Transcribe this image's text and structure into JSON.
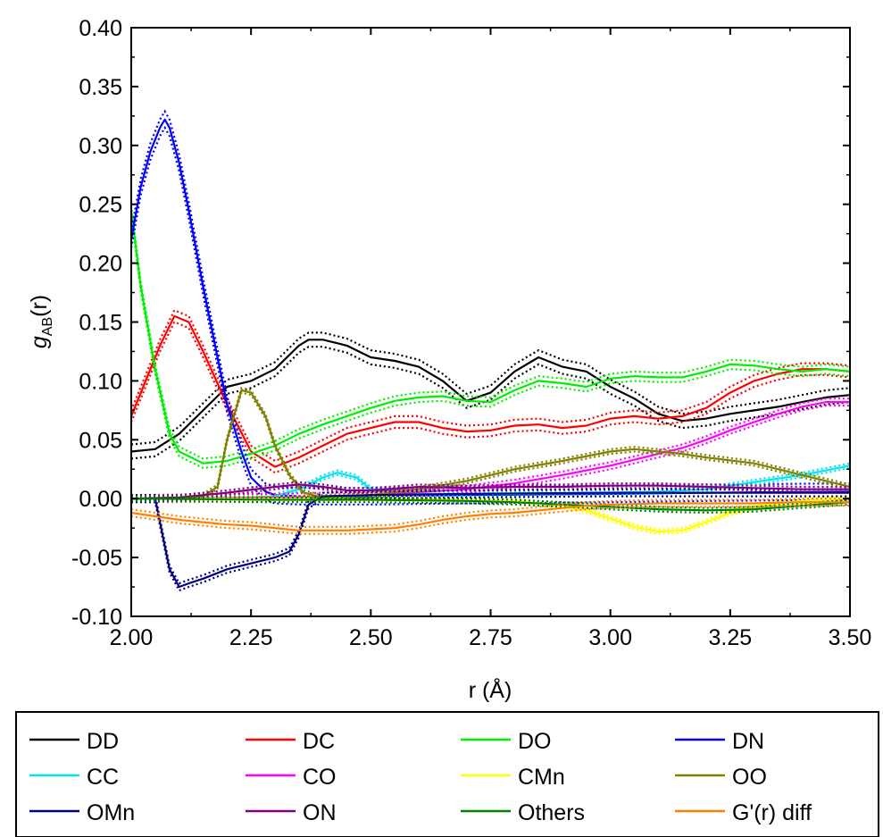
{
  "chart_data": {
    "type": "line",
    "xlabel": "r (Å)",
    "ylabel": {
      "main": "g",
      "sub": "AB",
      "suffix": "(r)"
    },
    "xlim": [
      2.0,
      3.5
    ],
    "ylim": [
      -0.1,
      0.4
    ],
    "xticks": [
      "2.00",
      "2.25",
      "2.50",
      "2.75",
      "3.00",
      "3.25",
      "3.50"
    ],
    "yticks": [
      "-0.10",
      "-0.05",
      "0.00",
      "0.05",
      "0.10",
      "0.15",
      "0.20",
      "0.25",
      "0.30",
      "0.35",
      "0.40"
    ],
    "grid": false,
    "legend_position": "bottom",
    "note": "Each solid curve is accompanied by dotted upper/lower curves",
    "series": [
      {
        "name": "DD",
        "color": "#000000",
        "band": 0.006,
        "x": [
          2.0,
          2.05,
          2.1,
          2.15,
          2.2,
          2.25,
          2.3,
          2.35,
          2.37,
          2.4,
          2.45,
          2.5,
          2.55,
          2.6,
          2.65,
          2.7,
          2.75,
          2.8,
          2.85,
          2.9,
          2.95,
          3.0,
          3.05,
          3.1,
          3.15,
          3.2,
          3.25,
          3.3,
          3.35,
          3.4,
          3.45,
          3.5
        ],
        "y": [
          0.04,
          0.042,
          0.055,
          0.075,
          0.095,
          0.1,
          0.11,
          0.13,
          0.135,
          0.135,
          0.13,
          0.12,
          0.117,
          0.112,
          0.1,
          0.083,
          0.09,
          0.108,
          0.12,
          0.112,
          0.108,
          0.095,
          0.085,
          0.072,
          0.066,
          0.068,
          0.072,
          0.075,
          0.078,
          0.082,
          0.086,
          0.088
        ]
      },
      {
        "name": "DC",
        "color": "#ff0000",
        "band": 0.005,
        "x": [
          2.0,
          2.03,
          2.06,
          2.09,
          2.12,
          2.15,
          2.2,
          2.25,
          2.3,
          2.35,
          2.4,
          2.45,
          2.5,
          2.55,
          2.6,
          2.65,
          2.7,
          2.75,
          2.8,
          2.85,
          2.9,
          2.95,
          3.0,
          3.05,
          3.1,
          3.15,
          3.2,
          3.25,
          3.3,
          3.35,
          3.4,
          3.45,
          3.5
        ],
        "y": [
          0.07,
          0.1,
          0.13,
          0.155,
          0.15,
          0.125,
          0.08,
          0.04,
          0.027,
          0.035,
          0.045,
          0.055,
          0.06,
          0.065,
          0.065,
          0.06,
          0.057,
          0.058,
          0.062,
          0.063,
          0.06,
          0.062,
          0.068,
          0.07,
          0.068,
          0.07,
          0.077,
          0.09,
          0.1,
          0.106,
          0.11,
          0.11,
          0.108
        ]
      },
      {
        "name": "DO",
        "color": "#00ee00",
        "band": 0.004,
        "x": [
          2.0,
          2.02,
          2.05,
          2.08,
          2.1,
          2.15,
          2.2,
          2.25,
          2.3,
          2.35,
          2.4,
          2.45,
          2.5,
          2.55,
          2.6,
          2.65,
          2.7,
          2.75,
          2.8,
          2.85,
          2.9,
          2.95,
          3.0,
          3.05,
          3.1,
          3.15,
          3.2,
          3.25,
          3.3,
          3.35,
          3.4,
          3.45,
          3.5
        ],
        "y": [
          0.245,
          0.18,
          0.11,
          0.055,
          0.04,
          0.03,
          0.032,
          0.038,
          0.045,
          0.055,
          0.063,
          0.07,
          0.077,
          0.083,
          0.086,
          0.087,
          0.083,
          0.082,
          0.092,
          0.1,
          0.098,
          0.095,
          0.102,
          0.104,
          0.103,
          0.103,
          0.108,
          0.114,
          0.113,
          0.11,
          0.108,
          0.11,
          0.108
        ]
      },
      {
        "name": "DN",
        "color": "#0000ff",
        "band": 0.007,
        "x": [
          2.0,
          2.02,
          2.04,
          2.06,
          2.07,
          2.08,
          2.1,
          2.12,
          2.15,
          2.18,
          2.2,
          2.23,
          2.25,
          2.28,
          2.3,
          2.35,
          2.4,
          2.5,
          2.7,
          3.0,
          3.2,
          3.5
        ],
        "y": [
          0.22,
          0.265,
          0.295,
          0.315,
          0.322,
          0.315,
          0.285,
          0.245,
          0.18,
          0.12,
          0.08,
          0.04,
          0.018,
          0.006,
          0.003,
          0.002,
          0.002,
          0.002,
          0.003,
          0.004,
          0.005,
          0.006
        ]
      },
      {
        "name": "CC",
        "color": "#00e5ee",
        "band": 0.002,
        "x": [
          2.0,
          2.2,
          2.3,
          2.35,
          2.4,
          2.43,
          2.47,
          2.5,
          2.6,
          2.8,
          3.0,
          3.1,
          3.2,
          3.3,
          3.4,
          3.5
        ],
        "y": [
          0.0,
          0.0,
          0.002,
          0.008,
          0.018,
          0.022,
          0.018,
          0.008,
          0.004,
          0.004,
          0.005,
          0.006,
          0.008,
          0.014,
          0.02,
          0.028
        ]
      },
      {
        "name": "CO",
        "color": "#ff00ff",
        "band": 0.003,
        "x": [
          2.0,
          2.3,
          2.5,
          2.7,
          2.8,
          2.9,
          3.0,
          3.05,
          3.1,
          3.15,
          3.2,
          3.25,
          3.3,
          3.35,
          3.4,
          3.45,
          3.5
        ],
        "y": [
          0.0,
          0.001,
          0.003,
          0.008,
          0.013,
          0.02,
          0.028,
          0.033,
          0.038,
          0.043,
          0.05,
          0.058,
          0.065,
          0.072,
          0.078,
          0.082,
          0.082
        ]
      },
      {
        "name": "CMn",
        "color": "#ffff00",
        "band": 0.002,
        "x": [
          2.0,
          2.5,
          2.8,
          2.9,
          2.95,
          3.0,
          3.05,
          3.1,
          3.15,
          3.2,
          3.25,
          3.3,
          3.35,
          3.4,
          3.5
        ],
        "y": [
          0.0,
          0.0,
          -0.002,
          -0.006,
          -0.01,
          -0.017,
          -0.024,
          -0.028,
          -0.027,
          -0.02,
          -0.012,
          -0.007,
          -0.004,
          -0.002,
          0.0
        ]
      },
      {
        "name": "OO",
        "color": "#808000",
        "band": 0.002,
        "x": [
          2.0,
          2.1,
          2.15,
          2.18,
          2.2,
          2.23,
          2.25,
          2.28,
          2.3,
          2.33,
          2.36,
          2.4,
          2.5,
          2.6,
          2.7,
          2.8,
          2.9,
          3.0,
          3.05,
          3.1,
          3.15,
          3.2,
          3.3,
          3.4,
          3.5
        ],
        "y": [
          0.0,
          0.0,
          0.002,
          0.01,
          0.05,
          0.092,
          0.09,
          0.07,
          0.045,
          0.02,
          0.005,
          0.001,
          0.003,
          0.008,
          0.015,
          0.025,
          0.032,
          0.04,
          0.042,
          0.04,
          0.038,
          0.035,
          0.03,
          0.02,
          0.01
        ]
      },
      {
        "name": "OMn",
        "color": "#000080",
        "band": 0.003,
        "x": [
          2.0,
          2.05,
          2.08,
          2.1,
          2.12,
          2.15,
          2.2,
          2.25,
          2.3,
          2.33,
          2.35,
          2.37,
          2.4,
          2.5,
          2.7,
          3.0,
          3.2,
          3.5
        ],
        "y": [
          0.0,
          0.0,
          -0.06,
          -0.075,
          -0.072,
          -0.068,
          -0.06,
          -0.055,
          -0.05,
          -0.045,
          -0.03,
          -0.005,
          0.002,
          0.003,
          0.004,
          0.005,
          0.005,
          0.005
        ]
      },
      {
        "name": "ON",
        "color": "#800080",
        "band": 0.002,
        "x": [
          2.0,
          2.1,
          2.2,
          2.3,
          2.35,
          2.4,
          2.45,
          2.5,
          2.6,
          2.7,
          2.8,
          2.9,
          3.0,
          3.1,
          3.2,
          3.3,
          3.4,
          3.5
        ],
        "y": [
          0.0,
          0.001,
          0.005,
          0.01,
          0.012,
          0.01,
          0.007,
          0.007,
          0.01,
          0.009,
          0.01,
          0.01,
          0.011,
          0.011,
          0.01,
          0.009,
          0.008,
          0.008
        ]
      },
      {
        "name": "Others",
        "color": "#008000",
        "band": 0.002,
        "x": [
          2.0,
          2.3,
          2.5,
          2.7,
          2.8,
          2.9,
          3.0,
          3.1,
          3.2,
          3.3,
          3.4,
          3.5
        ],
        "y": [
          0.0,
          -0.001,
          -0.001,
          -0.002,
          -0.003,
          -0.005,
          -0.007,
          -0.009,
          -0.01,
          -0.009,
          -0.006,
          -0.003
        ]
      },
      {
        "name": "G'(r) diff",
        "color": "#ff8000",
        "band": 0.003,
        "x": [
          2.0,
          2.05,
          2.1,
          2.15,
          2.2,
          2.25,
          2.3,
          2.35,
          2.4,
          2.45,
          2.5,
          2.55,
          2.6,
          2.65,
          2.7,
          2.75,
          2.8,
          2.85,
          2.9,
          2.95,
          3.0,
          3.1,
          3.2,
          3.3,
          3.4,
          3.5
        ],
        "y": [
          -0.012,
          -0.015,
          -0.018,
          -0.02,
          -0.022,
          -0.023,
          -0.025,
          -0.027,
          -0.027,
          -0.027,
          -0.026,
          -0.025,
          -0.022,
          -0.018,
          -0.015,
          -0.013,
          -0.012,
          -0.01,
          -0.008,
          -0.006,
          -0.005,
          -0.004,
          -0.004,
          -0.004,
          -0.003,
          -0.003
        ]
      }
    ]
  }
}
